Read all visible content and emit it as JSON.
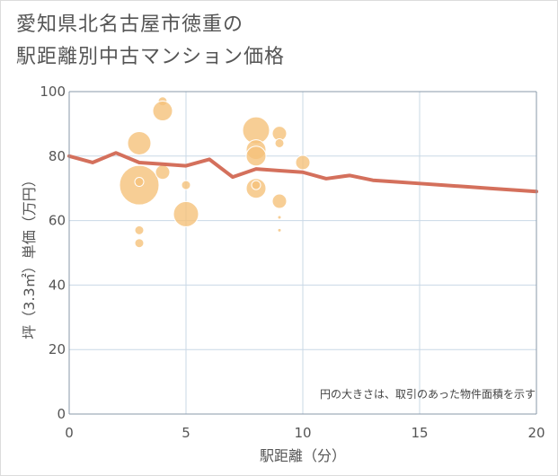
{
  "title": {
    "line1": "愛知県北名古屋市徳重の",
    "line2": "駅距離別中古マンション価格"
  },
  "colors": {
    "bubble": "#f5c27a",
    "bubble_stroke": "#ffffff",
    "line": "#d4705c",
    "grid": "#c9d8e6",
    "axis": "#8899aa",
    "text": "#555555"
  },
  "chart_data": {
    "type": "scatter",
    "title": "",
    "xlabel": "駅距離（分）",
    "ylabel": "坪（3.3㎡）単価（万円）",
    "xlim": [
      0,
      20
    ],
    "ylim": [
      0,
      100
    ],
    "x_ticks": [
      "0",
      "5",
      "10",
      "15",
      "20"
    ],
    "y_ticks": [
      "0",
      "20",
      "40",
      "60",
      "80",
      "100"
    ],
    "x_tick_values": [
      0,
      5,
      10,
      15,
      20
    ],
    "y_tick_values": [
      0,
      20,
      40,
      60,
      80,
      100
    ],
    "grid": true,
    "annotation": "円の大きさは、取引のあった物件面積を示す",
    "bubbles": [
      {
        "x": 3,
        "y": 71,
        "size": 22
      },
      {
        "x": 3,
        "y": 72,
        "size": 5
      },
      {
        "x": 3,
        "y": 84,
        "size": 13
      },
      {
        "x": 3,
        "y": 57,
        "size": 5
      },
      {
        "x": 3,
        "y": 53,
        "size": 5
      },
      {
        "x": 4,
        "y": 97,
        "size": 5
      },
      {
        "x": 4,
        "y": 94,
        "size": 11
      },
      {
        "x": 4,
        "y": 75,
        "size": 8
      },
      {
        "x": 5,
        "y": 71,
        "size": 5
      },
      {
        "x": 5,
        "y": 62,
        "size": 14
      },
      {
        "x": 8,
        "y": 88,
        "size": 15
      },
      {
        "x": 8,
        "y": 82,
        "size": 11
      },
      {
        "x": 8,
        "y": 80,
        "size": 11
      },
      {
        "x": 8,
        "y": 70,
        "size": 11
      },
      {
        "x": 8,
        "y": 71,
        "size": 5
      },
      {
        "x": 9,
        "y": 87,
        "size": 8
      },
      {
        "x": 9,
        "y": 84,
        "size": 5
      },
      {
        "x": 9,
        "y": 66,
        "size": 8
      },
      {
        "x": 9,
        "y": 61,
        "size": 2
      },
      {
        "x": 9,
        "y": 57,
        "size": 2
      },
      {
        "x": 10,
        "y": 78,
        "size": 8
      }
    ],
    "trend_line": {
      "x": [
        0,
        1,
        2,
        3,
        4,
        5,
        6,
        7,
        8,
        9,
        10,
        11,
        12,
        13,
        14,
        15,
        16,
        17,
        18,
        19,
        20
      ],
      "y": [
        80,
        78,
        81,
        78,
        77.5,
        77,
        79,
        73.5,
        76,
        75.5,
        75,
        73,
        74,
        72.5,
        72,
        71.5,
        71,
        70.5,
        70,
        69.5,
        69
      ]
    }
  }
}
